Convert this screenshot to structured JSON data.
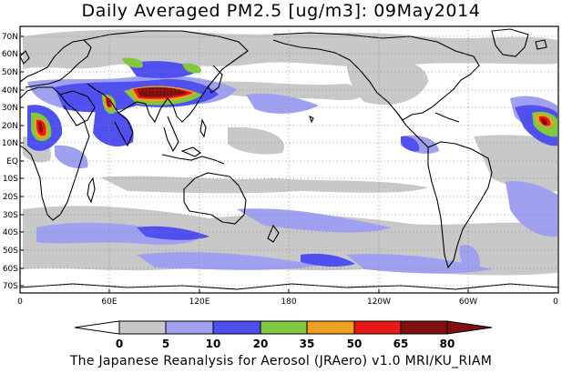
{
  "title": "Daily Averaged PM2.5 [ug/m3]: 09May2014",
  "footer": "The Japanese Reanalysis for Aerosol (JRAero) v1.0 MRI/KU_RIAM",
  "map": {
    "lat_labels": [
      "70N",
      "60N",
      "50N",
      "40N",
      "30N",
      "20N",
      "10N",
      "EQ",
      "10S",
      "20S",
      "30S",
      "40S",
      "50S",
      "60S",
      "70S"
    ],
    "lon_labels": [
      "0",
      "60E",
      "120E",
      "180",
      "120W",
      "60W",
      "0"
    ],
    "grid": "dotted"
  },
  "colorbar": {
    "levels": [
      "0",
      "5",
      "10",
      "20",
      "35",
      "50",
      "65",
      "80"
    ],
    "colors": [
      "#ffffff",
      "#c8c8c8",
      "#a0a0f0",
      "#5050f0",
      "#80c840",
      "#f0a020",
      "#e81818",
      "#801010"
    ]
  },
  "colors": {
    "low": "#c8c8c8",
    "light_blue": "#a0a0f0",
    "blue": "#5050f0",
    "green": "#80c840",
    "orange": "#f0a020",
    "red": "#e81818",
    "dark_red": "#801010"
  }
}
